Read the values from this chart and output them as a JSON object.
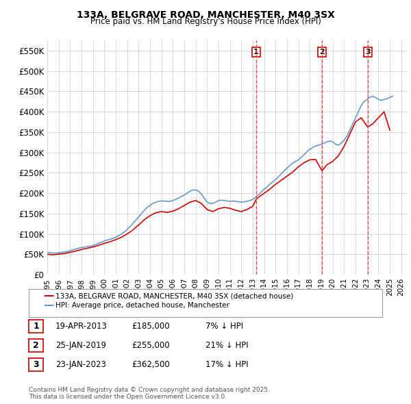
{
  "title": "133A, BELGRAVE ROAD, MANCHESTER, M40 3SX",
  "subtitle": "Price paid vs. HM Land Registry's House Price Index (HPI)",
  "ylabel_ticks": [
    "£0",
    "£50K",
    "£100K",
    "£150K",
    "£200K",
    "£250K",
    "£300K",
    "£350K",
    "£400K",
    "£450K",
    "£500K",
    "£550K"
  ],
  "ytick_values": [
    0,
    50000,
    100000,
    150000,
    200000,
    250000,
    300000,
    350000,
    400000,
    450000,
    500000,
    550000
  ],
  "ylim": [
    0,
    575000
  ],
  "xlim_start": 1995.0,
  "xlim_end": 2026.5,
  "hpi_color": "#6699cc",
  "property_color": "#cc0000",
  "vline_color": "#ff4444",
  "marker_box_color": "#cc0000",
  "background_color": "#ffffff",
  "grid_color": "#cccccc",
  "legend_label_property": "133A, BELGRAVE ROAD, MANCHESTER, M40 3SX (detached house)",
  "legend_label_hpi": "HPI: Average price, detached house, Manchester",
  "sales": [
    {
      "num": 1,
      "date": "19-APR-2013",
      "price": "£185,000",
      "hpi_rel": "7% ↓ HPI",
      "year": 2013.3
    },
    {
      "num": 2,
      "date": "25-JAN-2019",
      "price": "£255,000",
      "hpi_rel": "21% ↓ HPI",
      "year": 2019.07
    },
    {
      "num": 3,
      "date": "23-JAN-2023",
      "price": "£362,500",
      "hpi_rel": "17% ↓ HPI",
      "year": 2023.07
    }
  ],
  "footnote": "Contains HM Land Registry data © Crown copyright and database right 2025.\nThis data is licensed under the Open Government Licence v3.0.",
  "hpi_data": {
    "years": [
      1995.0,
      1995.25,
      1995.5,
      1995.75,
      1996.0,
      1996.25,
      1996.5,
      1996.75,
      1997.0,
      1997.25,
      1997.5,
      1997.75,
      1998.0,
      1998.25,
      1998.5,
      1998.75,
      1999.0,
      1999.25,
      1999.5,
      1999.75,
      2000.0,
      2000.25,
      2000.5,
      2000.75,
      2001.0,
      2001.25,
      2001.5,
      2001.75,
      2002.0,
      2002.25,
      2002.5,
      2002.75,
      2003.0,
      2003.25,
      2003.5,
      2003.75,
      2004.0,
      2004.25,
      2004.5,
      2004.75,
      2005.0,
      2005.25,
      2005.5,
      2005.75,
      2006.0,
      2006.25,
      2006.5,
      2006.75,
      2007.0,
      2007.25,
      2007.5,
      2007.75,
      2008.0,
      2008.25,
      2008.5,
      2008.75,
      2009.0,
      2009.25,
      2009.5,
      2009.75,
      2010.0,
      2010.25,
      2010.5,
      2010.75,
      2011.0,
      2011.25,
      2011.5,
      2011.75,
      2012.0,
      2012.25,
      2012.5,
      2012.75,
      2013.0,
      2013.25,
      2013.5,
      2013.75,
      2014.0,
      2014.25,
      2014.5,
      2014.75,
      2015.0,
      2015.25,
      2015.5,
      2015.75,
      2016.0,
      2016.25,
      2016.5,
      2016.75,
      2017.0,
      2017.25,
      2017.5,
      2017.75,
      2018.0,
      2018.25,
      2018.5,
      2018.75,
      2019.0,
      2019.25,
      2019.5,
      2019.75,
      2020.0,
      2020.25,
      2020.5,
      2020.75,
      2021.0,
      2021.25,
      2021.5,
      2021.75,
      2022.0,
      2022.25,
      2022.5,
      2022.75,
      2023.0,
      2023.25,
      2023.5,
      2023.75,
      2024.0,
      2024.25,
      2024.5,
      2024.75,
      2025.0,
      2025.25
    ],
    "values": [
      55000,
      54000,
      53500,
      53000,
      54000,
      55000,
      56000,
      57000,
      59000,
      61000,
      63000,
      65000,
      67000,
      68000,
      69000,
      70000,
      72000,
      74000,
      77000,
      80000,
      83000,
      85000,
      87000,
      89000,
      92000,
      96000,
      100000,
      105000,
      111000,
      118000,
      126000,
      134000,
      142000,
      150000,
      158000,
      165000,
      170000,
      175000,
      178000,
      180000,
      181000,
      181000,
      180000,
      180000,
      182000,
      185000,
      188000,
      192000,
      196000,
      200000,
      205000,
      208000,
      208000,
      205000,
      198000,
      188000,
      178000,
      175000,
      175000,
      178000,
      182000,
      183000,
      182000,
      181000,
      180000,
      181000,
      180000,
      179000,
      178000,
      179000,
      180000,
      182000,
      185000,
      190000,
      196000,
      203000,
      210000,
      216000,
      222000,
      228000,
      234000,
      240000,
      248000,
      255000,
      262000,
      268000,
      274000,
      278000,
      282000,
      288000,
      295000,
      302000,
      308000,
      312000,
      316000,
      318000,
      320000,
      323000,
      326000,
      328000,
      326000,
      320000,
      318000,
      323000,
      330000,
      340000,
      355000,
      370000,
      385000,
      400000,
      415000,
      425000,
      430000,
      435000,
      438000,
      435000,
      430000,
      428000,
      430000,
      432000,
      435000,
      438000
    ]
  },
  "property_data": {
    "years": [
      1995.0,
      1995.5,
      1996.0,
      1996.5,
      1997.0,
      1997.5,
      1998.0,
      1998.5,
      1999.0,
      1999.5,
      2000.0,
      2000.5,
      2001.0,
      2001.5,
      2002.0,
      2002.5,
      2003.0,
      2003.5,
      2004.0,
      2004.5,
      2005.0,
      2005.5,
      2006.0,
      2006.5,
      2007.0,
      2007.5,
      2008.0,
      2008.5,
      2009.0,
      2009.5,
      2010.0,
      2010.5,
      2011.0,
      2011.5,
      2012.0,
      2012.5,
      2013.0,
      2013.3,
      2013.5,
      2014.0,
      2014.5,
      2015.0,
      2015.5,
      2016.0,
      2016.5,
      2017.0,
      2017.5,
      2018.0,
      2018.5,
      2019.07,
      2019.5,
      2020.0,
      2020.5,
      2021.0,
      2021.5,
      2022.0,
      2022.5,
      2023.07,
      2023.5,
      2024.0,
      2024.5,
      2025.0
    ],
    "values": [
      50000,
      49000,
      50500,
      52000,
      55000,
      58000,
      62000,
      65000,
      68000,
      72000,
      77000,
      81000,
      86000,
      92000,
      100000,
      110000,
      122000,
      135000,
      145000,
      152000,
      155000,
      153000,
      156000,
      162000,
      170000,
      178000,
      182000,
      175000,
      160000,
      155000,
      162000,
      165000,
      163000,
      158000,
      155000,
      160000,
      168000,
      185000,
      190000,
      200000,
      210000,
      222000,
      232000,
      242000,
      252000,
      265000,
      275000,
      282000,
      283000,
      255000,
      270000,
      278000,
      292000,
      315000,
      345000,
      375000,
      385000,
      362500,
      370000,
      385000,
      400000,
      355000
    ]
  }
}
